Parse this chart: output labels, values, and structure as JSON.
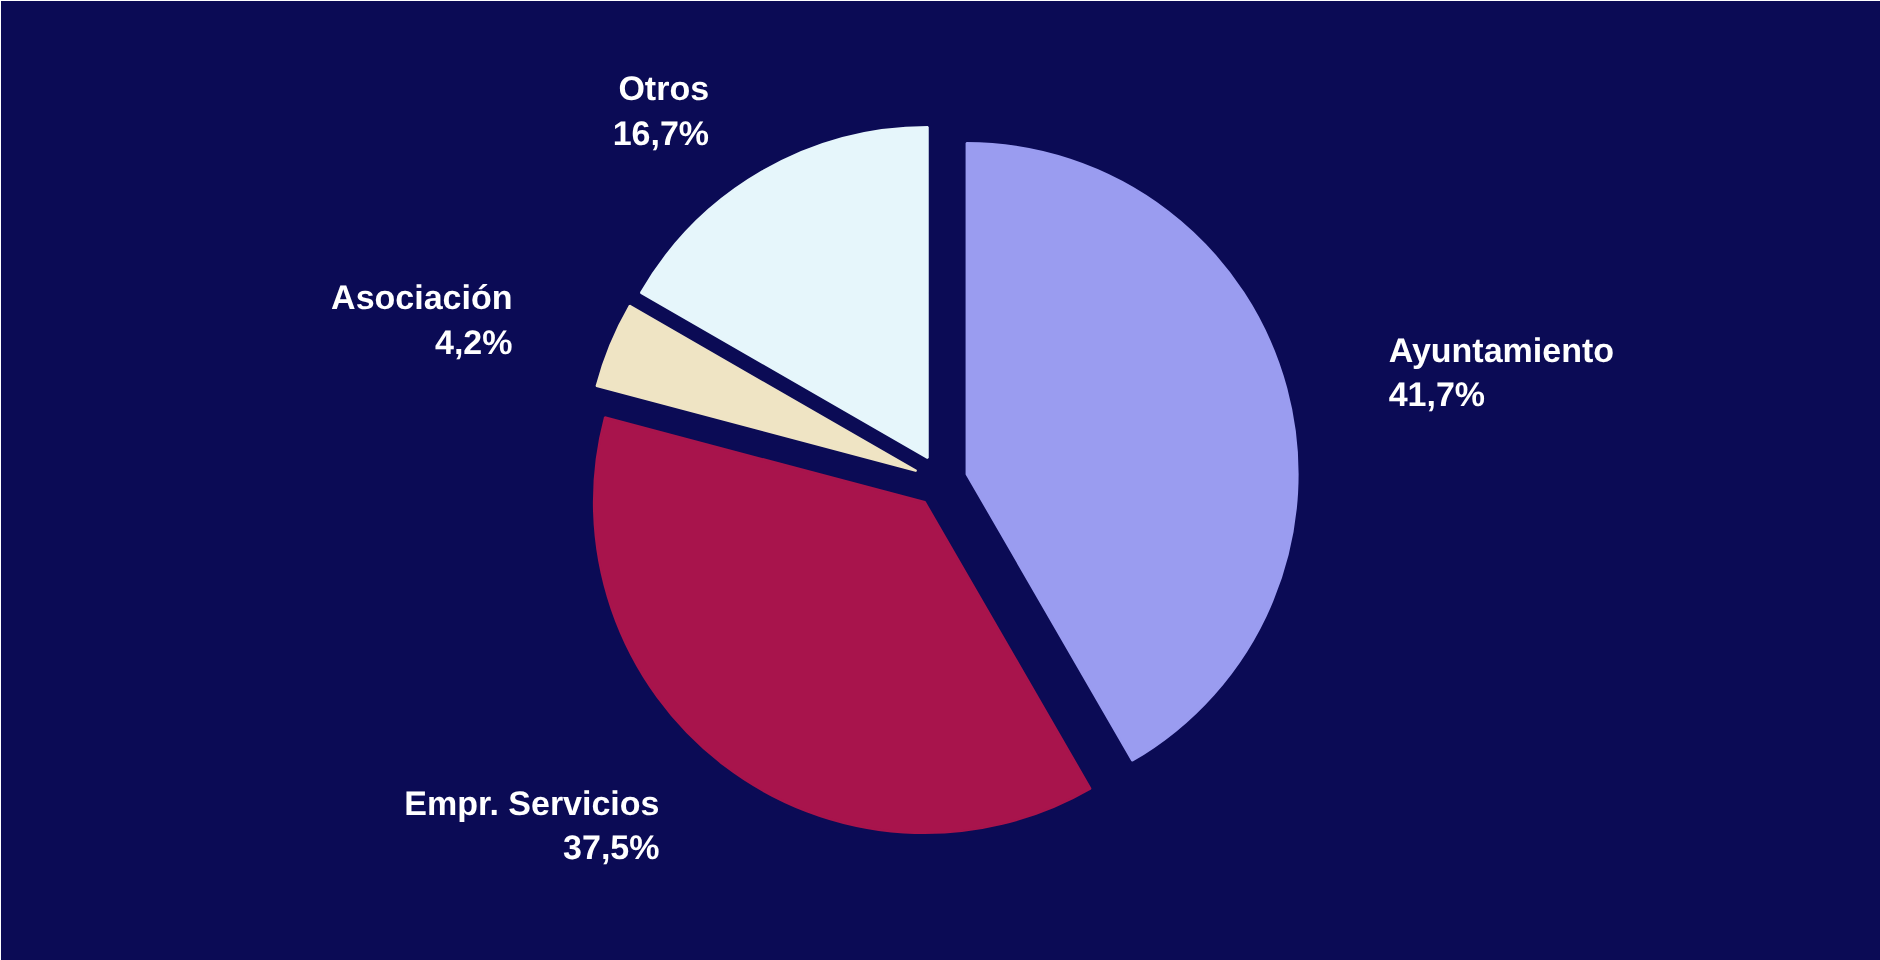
{
  "chart_data": {
    "type": "pie",
    "categories": [
      "Ayuntamiento",
      "Empr. Servicios",
      "Asociación",
      "Otros"
    ],
    "values": [
      41.7,
      37.5,
      4.2,
      16.7
    ],
    "value_labels": [
      "41,7%",
      "37,5%",
      "4,2%",
      "16,7%"
    ],
    "colors": [
      "#9a9cf0",
      "#a8144c",
      "#efe4c4",
      "#e6f6fb"
    ]
  }
}
